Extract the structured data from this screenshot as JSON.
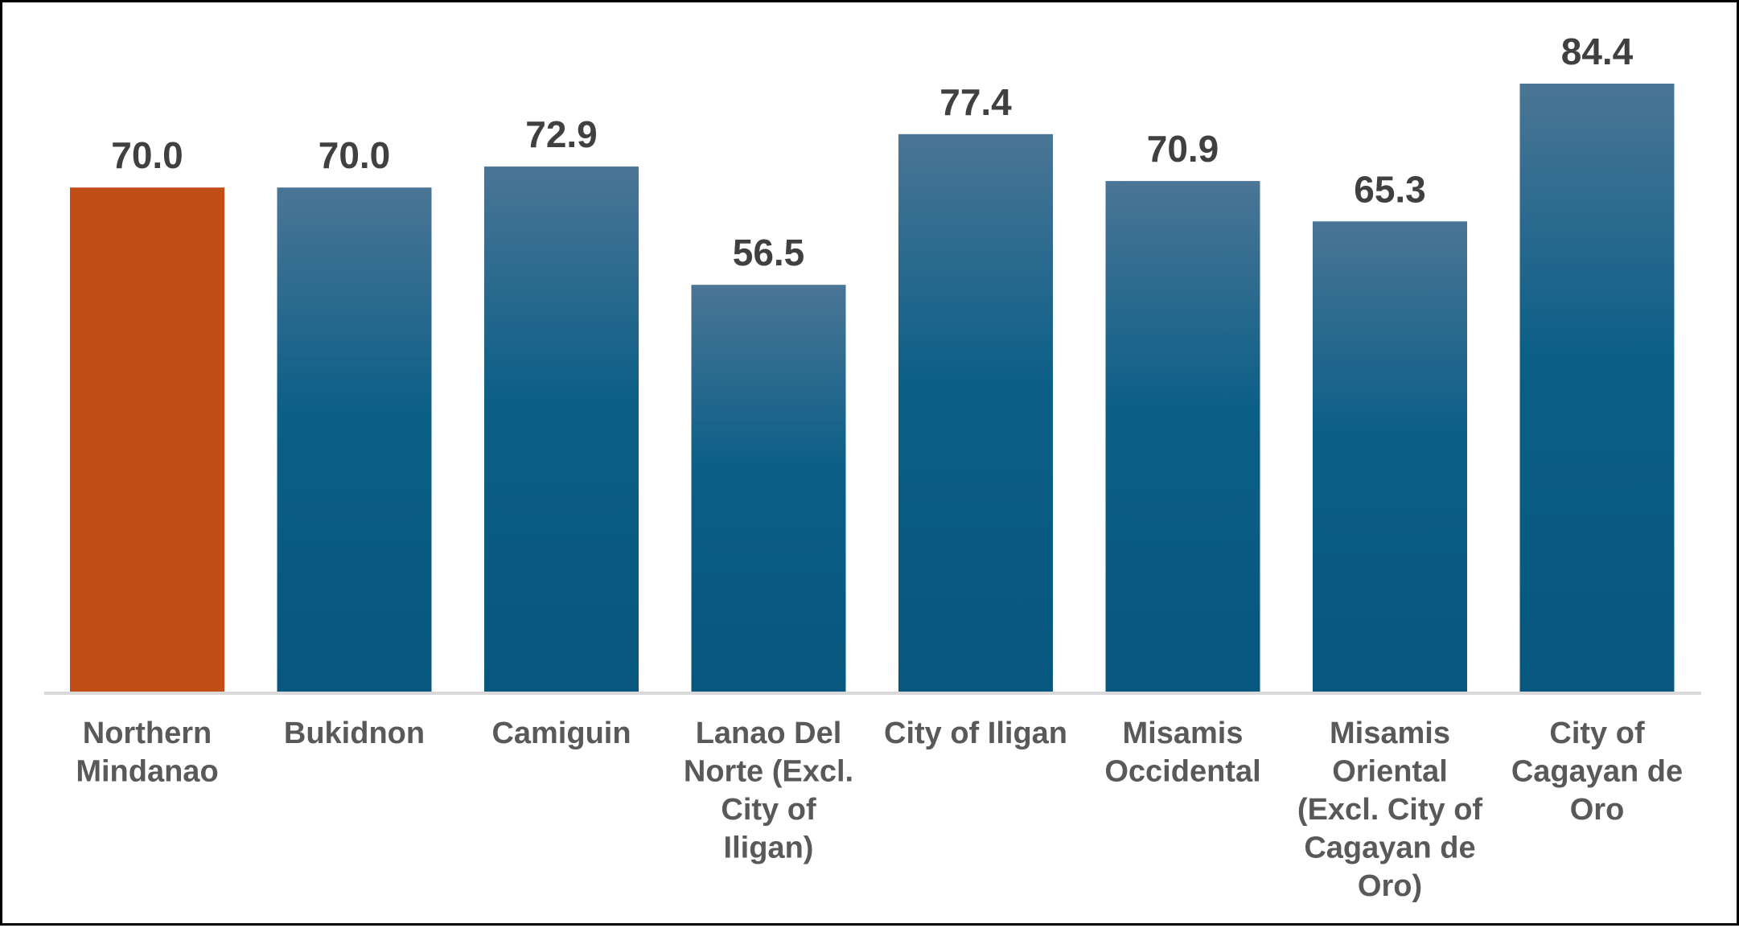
{
  "chart_data": {
    "type": "bar",
    "categories": [
      "Northern Mindanao",
      "Bukidnon",
      "Camiguin",
      "Lanao Del Norte (Excl. City of Iligan)",
      "City of Iligan",
      "Misamis Occidental",
      "Misamis Oriental (Excl. City of Cagayan de Oro)",
      "City of Cagayan de Oro"
    ],
    "category_label_lines": [
      [
        "Northern",
        "Mindanao"
      ],
      [
        "Bukidnon"
      ],
      [
        "Camiguin"
      ],
      [
        "Lanao Del",
        "Norte (Excl.",
        "City of",
        "Iligan)"
      ],
      [
        "City of Iligan"
      ],
      [
        "Misamis",
        "Occidental"
      ],
      [
        "Misamis",
        "Oriental",
        "(Excl. City of",
        "Cagayan de",
        "Oro)"
      ],
      [
        "City of",
        "Cagayan de",
        "Oro"
      ]
    ],
    "values": [
      70.0,
      70.0,
      72.9,
      56.5,
      77.4,
      70.9,
      65.3,
      84.4
    ],
    "value_labels": [
      "70.0",
      "70.0",
      "72.9",
      "56.5",
      "77.4",
      "70.9",
      "65.3",
      "84.4"
    ],
    "title": "",
    "xlabel": "",
    "ylabel": "",
    "ylim": [
      0,
      84.4
    ],
    "grid": false,
    "legend": "none",
    "colors": {
      "highlight_bar": "#C24E17",
      "bar_top": "#4A7596",
      "bar_bottom": "#07577F",
      "label_text": "#595959",
      "value_text": "#404040",
      "baseline": "#D9D9D9"
    }
  }
}
